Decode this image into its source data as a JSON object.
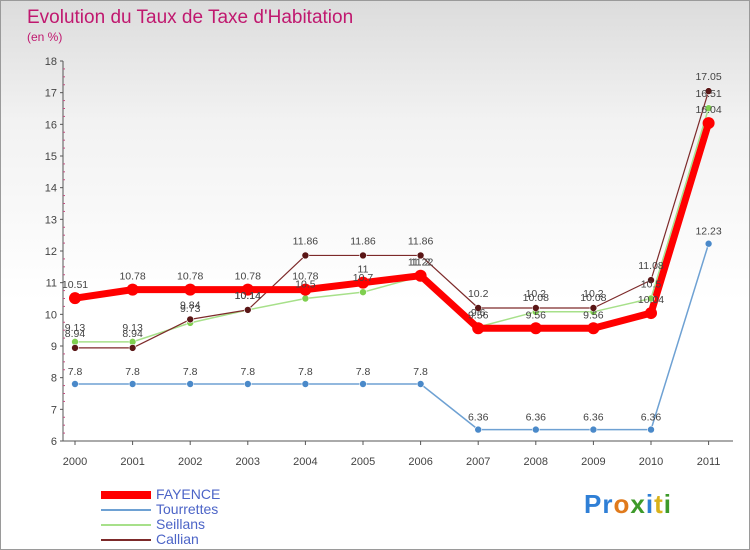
{
  "chart_data": {
    "type": "line",
    "title": "Evolution du Taux de Taxe d'Habitation",
    "subtitle": "(en %)",
    "x": [
      "2000",
      "2001",
      "2002",
      "2003",
      "2004",
      "2005",
      "2006",
      "2007",
      "2008",
      "2009",
      "2010",
      "2011"
    ],
    "ylim": [
      6,
      18
    ],
    "yticks": [
      "6",
      "7",
      "8",
      "9",
      "10",
      "11",
      "12",
      "13",
      "14",
      "15",
      "16",
      "17",
      "18"
    ],
    "grid": false,
    "legend_position": "bottom-left",
    "series": [
      {
        "name": "FAYENCE",
        "color": "#ff0000",
        "values": [
          10.51,
          10.78,
          10.78,
          10.78,
          10.78,
          11,
          11.22,
          9.56,
          9.56,
          9.56,
          10.04,
          16.04
        ],
        "labels": [
          "10.51",
          "10.78",
          "10.78",
          "10.78",
          "10.78",
          "11",
          "11.22",
          "9.56",
          "9.56",
          "9.56",
          "10.04",
          "16.04"
        ]
      },
      {
        "name": "Tourrettes",
        "color": "#6ea1d3",
        "values": [
          7.8,
          7.8,
          7.8,
          7.8,
          7.8,
          7.8,
          7.8,
          6.36,
          6.36,
          6.36,
          6.36,
          12.23
        ],
        "labels": [
          "7.8",
          "7.8",
          "7.8",
          "7.8",
          "7.8",
          "7.8",
          "7.8",
          "6.36",
          "6.36",
          "6.36",
          "6.36",
          "12.23"
        ]
      },
      {
        "name": "Seillans",
        "color": "#a7e08a",
        "values": [
          9.13,
          9.13,
          9.73,
          10.14,
          10.5,
          10.7,
          11.2,
          9.6,
          10.08,
          10.08,
          10.5,
          16.51
        ],
        "labels": [
          "9.13",
          "9.13",
          "9.73",
          "10.14",
          "10.5",
          "10.7",
          "11.2",
          "9.6",
          "10.08",
          "10.08",
          "10.5",
          "16.51"
        ]
      },
      {
        "name": "Callian",
        "color": "#7d2a2a",
        "values": [
          8.94,
          8.94,
          9.84,
          10.14,
          11.86,
          11.86,
          11.86,
          10.2,
          10.2,
          10.2,
          11.08,
          17.05
        ],
        "labels": [
          "8.94",
          "8.94",
          "9.84",
          "10.14",
          "11.86",
          "11.86",
          "11.86",
          "10.2",
          "10.2",
          "10.2",
          "11.08",
          "17.05"
        ]
      }
    ]
  },
  "colors": {
    "title": "#c0186f",
    "axis": "#555555",
    "label": "#444444",
    "legend_text": "#4c64c7"
  },
  "logo": {
    "parts": [
      "P",
      "r",
      "o",
      "x",
      "i",
      "t",
      "i"
    ]
  }
}
